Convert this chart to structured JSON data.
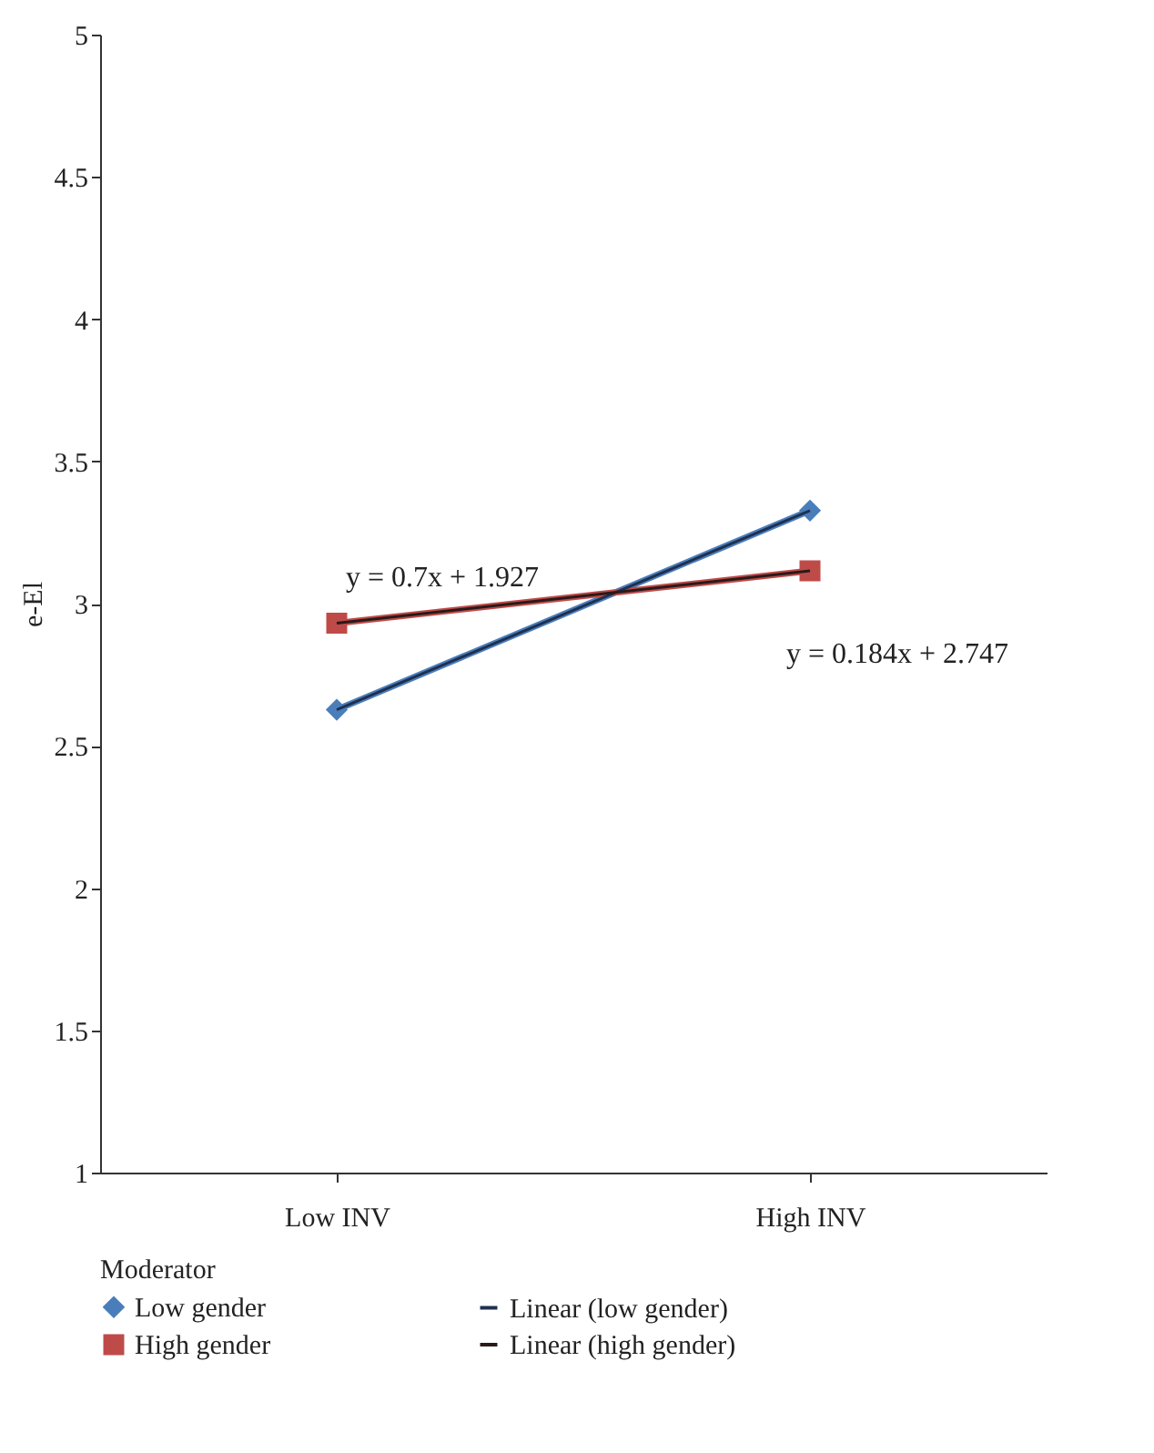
{
  "chart_data": {
    "type": "line",
    "categories": [
      "Low INV",
      "High INV"
    ],
    "ylabel": "e-El",
    "legend_title": "Moderator",
    "legend": "bottom",
    "ylim": [
      1,
      5
    ],
    "yticks": [
      1,
      1.5,
      2,
      2.5,
      3,
      3.5,
      4,
      4.5,
      5
    ],
    "grid": false,
    "series": [
      {
        "name": "Low gender",
        "color": "#4a7ebb",
        "values": [
          2.627,
          3.327
        ],
        "marker": "diamond"
      },
      {
        "name": "Linear (low gender)",
        "type": "line",
        "color": "#1f3050",
        "x": [
          "Low INV",
          "High INV"
        ],
        "values": [
          2.627,
          3.327
        ],
        "marker": "none"
      },
      {
        "name": "High gender",
        "color": "#be4b48",
        "values": [
          2.931,
          3.115
        ],
        "marker": "square"
      },
      {
        "name": "Linear (high gender)",
        "type": "line",
        "color": "#2a1a1a",
        "x": [
          "Low INV",
          "High INV"
        ],
        "values": [
          2.931,
          3.115
        ],
        "marker": "none"
      }
    ],
    "annotations": [
      "y = 0.7x + 1.927",
      "y = 0.184x + 2.747"
    ]
  }
}
